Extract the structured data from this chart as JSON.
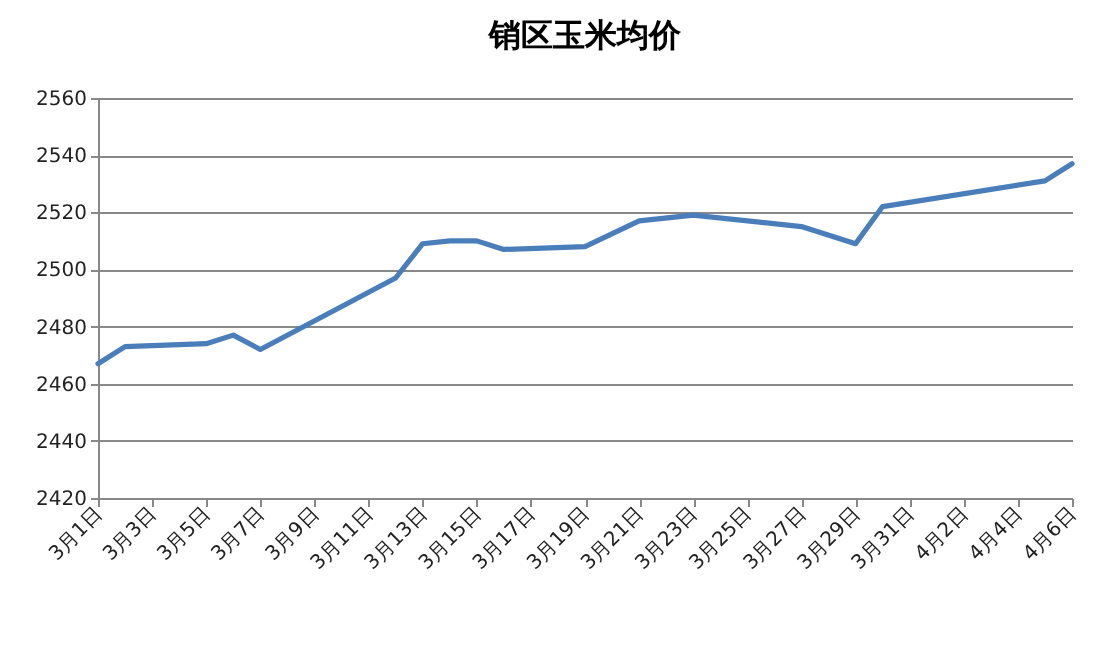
{
  "chart_data": {
    "type": "line",
    "title": "销区玉米均价",
    "x": [
      "--03-01",
      "--03-02",
      "--03-05",
      "--03-06",
      "--03-07",
      "--03-12",
      "--03-13",
      "--03-14",
      "--03-15",
      "--03-16",
      "--03-19",
      "--03-21",
      "--03-23",
      "--03-27",
      "--03-29",
      "--03-30",
      "--04-05",
      "--04-06"
    ],
    "series": [
      {
        "color": "#4a7ebb",
        "values": [
          2467,
          2473,
          2474,
          2477,
          2472,
          2497,
          2509,
          2510,
          2510,
          2507,
          2508,
          2517,
          2519,
          2515,
          2509,
          2522,
          2531,
          2537
        ]
      }
    ],
    "xlim": [
      "--03-01",
      "--04-06"
    ],
    "xticks": [
      {
        "value": "--03-01",
        "label": "3月1日"
      },
      {
        "value": "--03-03",
        "label": "3月3日"
      },
      {
        "value": "--03-05",
        "label": "3月5日"
      },
      {
        "value": "--03-07",
        "label": "3月7日"
      },
      {
        "value": "--03-09",
        "label": "3月9日"
      },
      {
        "value": "--03-11",
        "label": "3月11日"
      },
      {
        "value": "--03-13",
        "label": "3月13日"
      },
      {
        "value": "--03-15",
        "label": "3月15日"
      },
      {
        "value": "--03-17",
        "label": "3月17日"
      },
      {
        "value": "--03-19",
        "label": "3月19日"
      },
      {
        "value": "--03-21",
        "label": "3月21日"
      },
      {
        "value": "--03-23",
        "label": "3月23日"
      },
      {
        "value": "--03-25",
        "label": "3月25日"
      },
      {
        "value": "--03-27",
        "label": "3月27日"
      },
      {
        "value": "--03-29",
        "label": "3月29日"
      },
      {
        "value": "--03-31",
        "label": "3月31日"
      },
      {
        "value": "--04-02",
        "label": "4月2日"
      },
      {
        "value": "--04-04",
        "label": "4月4日"
      },
      {
        "value": "--04-06",
        "label": "4月6日"
      }
    ],
    "ylim": [
      2420,
      2560
    ],
    "yticks": [
      2420,
      2440,
      2460,
      2480,
      2500,
      2520,
      2540,
      2560
    ],
    "grid": "y",
    "marker": "none",
    "line_style": "solid"
  }
}
